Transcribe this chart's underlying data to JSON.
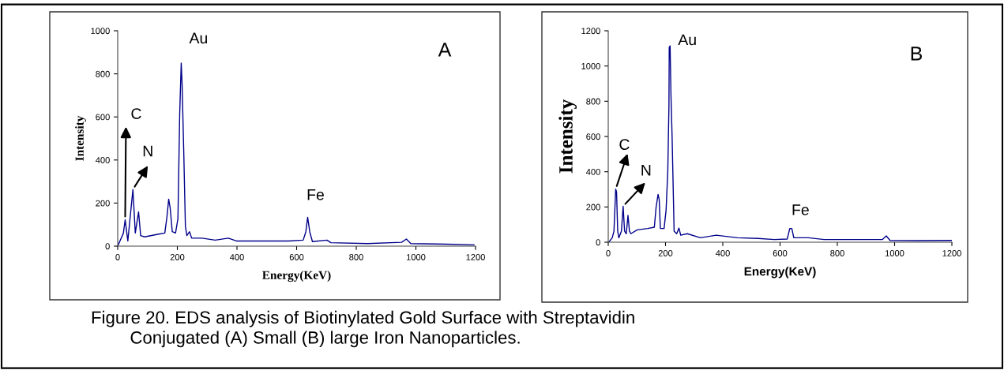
{
  "chart_data": [
    {
      "type": "line",
      "xlabel": "Energy(KeV)",
      "ylabel": "Intensity",
      "xlim": [
        0,
        1200
      ],
      "ylim": [
        0,
        1000
      ],
      "xticks": [
        0,
        200,
        400,
        600,
        800,
        1000,
        1200
      ],
      "yticks": [
        0,
        200,
        400,
        600,
        800,
        1000
      ],
      "grid": false,
      "marker": "none",
      "line_style": "solid",
      "annotations": [
        {
          "text": "Au",
          "x": 213,
          "y": 850
        },
        {
          "text": "C",
          "x": 25,
          "y": 122
        },
        {
          "text": "N",
          "x": 51,
          "y": 263
        },
        {
          "text": "Fe",
          "x": 637,
          "y": 134
        },
        "A",
        "Figure 20. EDS analysis of Biotinylated Gold Surface with Streptavidin\n        Conjugated (A) Small (B) large Iron Nanoparticles."
      ],
      "series": [
        {
          "color": "#00008b",
          "x": [
            0,
            19,
            25,
            34,
            51,
            59,
            70,
            77,
            90,
            134,
            158,
            165,
            171,
            176,
            183,
            194,
            202,
            208,
            213,
            216,
            222,
            227,
            232,
            241,
            248,
            283,
            327,
            371,
            398,
            442,
            486,
            574,
            622,
            631,
            637,
            644,
            653,
            702,
            715,
            838,
            952,
            968,
            983,
            1101,
            1195
          ],
          "values": [
            0,
            60,
            122,
            24,
            263,
            61,
            159,
            49,
            43,
            55,
            61,
            134,
            218,
            177,
            67,
            61,
            128,
            617,
            850,
            752,
            409,
            92,
            49,
            67,
            37,
            37,
            28,
            37,
            24,
            24,
            24,
            24,
            28,
            67,
            134,
            67,
            21,
            28,
            16,
            12,
            18,
            33,
            12,
            9,
            6
          ]
        }
      ]
    },
    {
      "type": "line",
      "xlabel": "Energy(KeV)",
      "ylabel": "Intensity",
      "xlim": [
        0,
        1200
      ],
      "ylim": [
        0,
        1200
      ],
      "xticks": [
        0,
        200,
        400,
        600,
        800,
        1000,
        1200
      ],
      "yticks": [
        0,
        200,
        400,
        600,
        800,
        1000,
        1200
      ],
      "grid": false,
      "marker": "none",
      "line_style": "solid",
      "annotations": [
        {
          "text": "Au",
          "x": 213,
          "y": 1106
        },
        {
          "text": "C",
          "x": 26,
          "y": 301
        },
        {
          "text": "N",
          "x": 52,
          "y": 204
        },
        {
          "text": "Fe",
          "x": 641,
          "y": 78
        },
        "B"
      ],
      "series": [
        {
          "color": "#00008b",
          "x": [
            2,
            14,
            20,
            26,
            29,
            33,
            37,
            46,
            52,
            57,
            63,
            69,
            74,
            79,
            101,
            138,
            161,
            167,
            174,
            178,
            182,
            195,
            202,
            208,
            212,
            213,
            216,
            219,
            223,
            230,
            239,
            247,
            253,
            276,
            322,
            377,
            451,
            524,
            580,
            625,
            634,
            641,
            648,
            699,
            754,
            957,
            971,
            984,
            1076,
            1200
          ],
          "values": [
            0,
            25,
            63,
            301,
            286,
            63,
            25,
            63,
            204,
            63,
            48,
            152,
            63,
            48,
            70,
            78,
            85,
            197,
            271,
            242,
            78,
            78,
            182,
            405,
            778,
            1106,
            1114,
            838,
            599,
            63,
            48,
            80,
            40,
            48,
            25,
            40,
            25,
            21,
            15,
            18,
            78,
            78,
            25,
            25,
            15,
            15,
            36,
            10,
            9,
            10
          ]
        }
      ]
    }
  ]
}
